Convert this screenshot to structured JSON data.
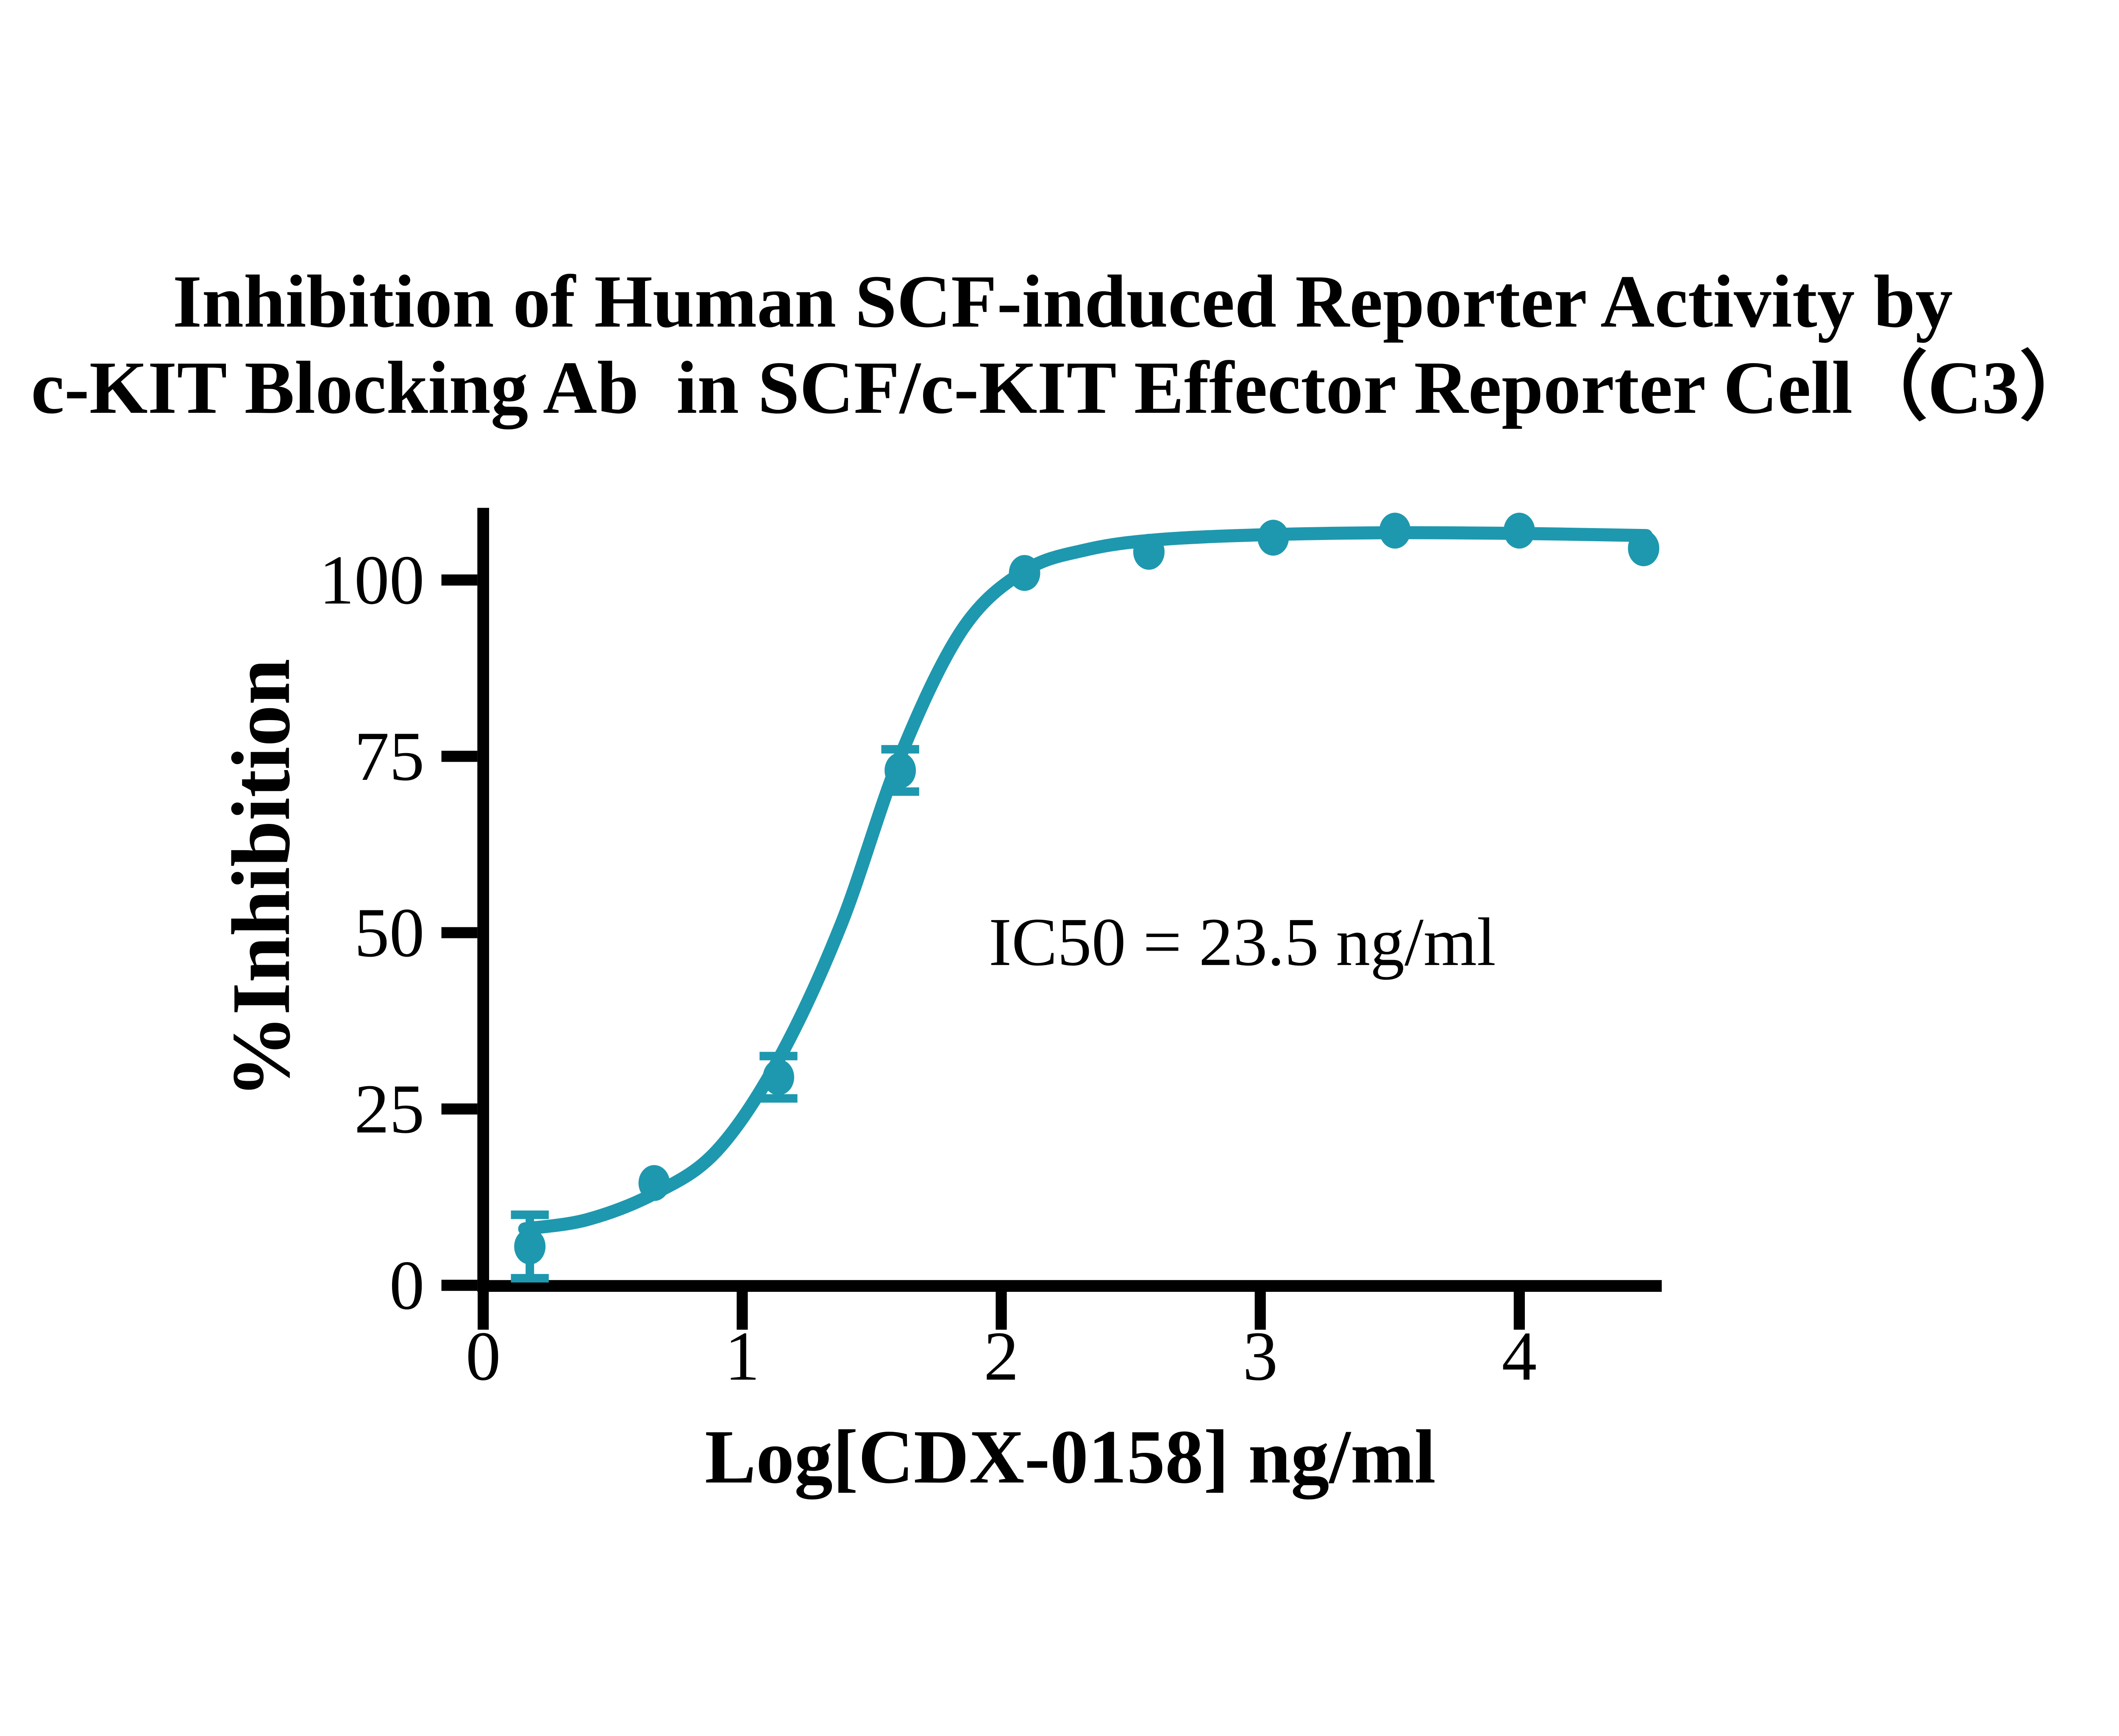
{
  "title": {
    "line1": "Inhibition of Human SCF-induced Reporter Activity by",
    "line2": "c-KIT Blocking Ab  in SCF/c-KIT Effector Reporter Cell（C3）"
  },
  "colors": {
    "series": "#1E98AE",
    "axis": "#000000",
    "background": "#FFFFFF"
  },
  "chart_data": {
    "type": "scatter",
    "title": "Inhibition of Human SCF-induced Reporter Activity by c-KIT Blocking Ab in SCF/c-KIT Effector Reporter Cell（C3）",
    "xlabel": "Log[CDX-0158] ng/ml",
    "ylabel": "%Inhibition",
    "annotation": "IC50 = 23.5 ng/ml",
    "ic50_ng_ml": 23.5,
    "x_ticks": [
      0,
      1,
      2,
      3,
      4
    ],
    "y_ticks": [
      0,
      25,
      50,
      75,
      100
    ],
    "xlim": [
      0,
      4.55
    ],
    "ylim": [
      0,
      110.5
    ],
    "grid": false,
    "legend": "none",
    "points": [
      {
        "log_x": 0.18,
        "pct_inhibition": 5.5,
        "err": 4.5
      },
      {
        "log_x": 0.66,
        "pct_inhibition": 14.5,
        "err": 0
      },
      {
        "log_x": 1.14,
        "pct_inhibition": 29.5,
        "err": 3
      },
      {
        "log_x": 1.61,
        "pct_inhibition": 73,
        "err": 3
      },
      {
        "log_x": 2.09,
        "pct_inhibition": 101,
        "err": 0
      },
      {
        "log_x": 2.57,
        "pct_inhibition": 104,
        "err": 0
      },
      {
        "log_x": 3.05,
        "pct_inhibition": 106,
        "err": 0
      },
      {
        "log_x": 3.52,
        "pct_inhibition": 107,
        "err": 0
      },
      {
        "log_x": 4.0,
        "pct_inhibition": 107,
        "err": 0
      },
      {
        "log_x": 4.48,
        "pct_inhibition": 104.5,
        "err": 0
      }
    ],
    "fit_curve": [
      [
        0.16,
        8.0
      ],
      [
        0.4,
        9.3
      ],
      [
        0.66,
        13.0
      ],
      [
        0.9,
        19.0
      ],
      [
        1.14,
        32.0
      ],
      [
        1.38,
        51.0
      ],
      [
        1.61,
        75.0
      ],
      [
        1.85,
        93.0
      ],
      [
        2.09,
        101.3
      ],
      [
        2.33,
        104.3
      ],
      [
        2.6,
        105.7
      ],
      [
        3.0,
        106.4
      ],
      [
        3.5,
        106.7
      ],
      [
        4.0,
        106.6
      ],
      [
        4.49,
        106.3
      ]
    ]
  }
}
